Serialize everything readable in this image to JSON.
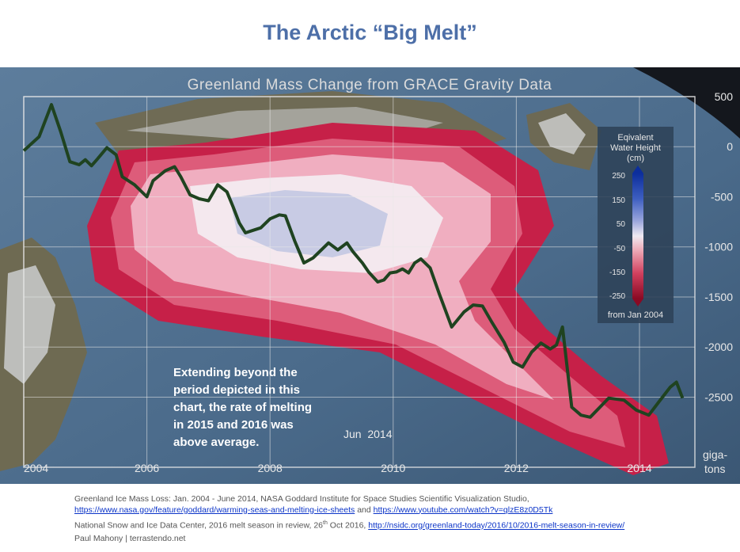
{
  "slide_title": "The Arctic “Big Melt”",
  "colors": {
    "title": "#4d6fa8",
    "sea": "#4a6a8a",
    "ice_loss": "#c62048",
    "ice_gain": "#c8cbe4",
    "line": "#1f4320",
    "link": "#0b34c8"
  },
  "chart_data": {
    "type": "line",
    "title": "Greenland Mass Change from GRACE Gravity Data",
    "xlabel": "",
    "ylabel": "giga-tons",
    "y_unit_lines": [
      "giga-",
      "tons"
    ],
    "xlim": [
      2004,
      2014.9
    ],
    "ylim": [
      -3200,
      500
    ],
    "x_ticks": [
      2004,
      2006,
      2008,
      2010,
      2012,
      2014
    ],
    "y_ticks": [
      500,
      0,
      -500,
      -1000,
      -1500,
      -2000,
      -2500
    ],
    "grid": true,
    "series": [
      {
        "name": "",
        "x": [
          2004.0,
          2004.25,
          2004.45,
          2004.6,
          2004.75,
          2004.9,
          2005.0,
          2005.1,
          2005.2,
          2005.35,
          2005.5,
          2005.6,
          2005.8,
          2006.0,
          2006.1,
          2006.3,
          2006.45,
          2006.55,
          2006.7,
          2006.85,
          2007.0,
          2007.15,
          2007.3,
          2007.4,
          2007.5,
          2007.6,
          2007.75,
          2007.85,
          2008.0,
          2008.15,
          2008.25,
          2008.4,
          2008.55,
          2008.7,
          2008.85,
          2008.95,
          2009.1,
          2009.25,
          2009.35,
          2009.5,
          2009.6,
          2009.75,
          2009.85,
          2009.95,
          2010.05,
          2010.15,
          2010.25,
          2010.35,
          2010.45,
          2010.6,
          2010.75,
          2010.95,
          2011.15,
          2011.3,
          2011.45,
          2011.6,
          2011.8,
          2011.95,
          2012.1,
          2012.25,
          2012.4,
          2012.55,
          2012.65,
          2012.75,
          2012.9,
          2013.05,
          2013.2,
          2013.5,
          2013.75,
          2013.95,
          2014.15,
          2014.3,
          2014.4,
          2014.5,
          2014.6,
          2014.7
        ],
        "values": [
          -40,
          100,
          420,
          150,
          -150,
          -180,
          -130,
          -190,
          -120,
          -10,
          -80,
          -300,
          -380,
          -500,
          -340,
          -240,
          -200,
          -300,
          -480,
          -520,
          -540,
          -380,
          -450,
          -600,
          -760,
          -860,
          -830,
          -810,
          -720,
          -680,
          -690,
          -940,
          -1160,
          -1110,
          -1020,
          -960,
          -1030,
          -960,
          -1050,
          -1160,
          -1250,
          -1350,
          -1330,
          -1260,
          -1250,
          -1220,
          -1260,
          -1160,
          -1120,
          -1210,
          -1470,
          -1800,
          -1650,
          -1580,
          -1590,
          -1750,
          -1950,
          -2150,
          -2200,
          -2050,
          -1960,
          -2020,
          -1980,
          -1800,
          -2600,
          -2680,
          -2700,
          -2510,
          -2530,
          -2630,
          -2680,
          -2560,
          -2480,
          -2400,
          -2350,
          -2510
        ]
      }
    ],
    "map_annotations": {
      "date_label": "Jun  2014",
      "callout": [
        "Extending beyond the",
        "period depicted in this",
        "chart, the rate of melting",
        "in 2015 and 2016 was",
        "above average."
      ]
    },
    "legend": {
      "title": [
        "Eqivalent",
        "Water Height",
        "(cm)"
      ],
      "ticks": [
        "250",
        "150",
        "50",
        "-50",
        "-150",
        "-250"
      ],
      "footer": "from Jan 2004",
      "placement": "right"
    }
  },
  "sources": {
    "line1_text": "Greenland Ice Mass Loss: Jan. 2004 - June 2014, NASA Goddard Institute for Space Studies Scientific Visualization Studio,",
    "link1": "https://www.nasa.gov/feature/goddard/warming-seas-and-melting-ice-sheets",
    "and_text": "and",
    "link2": "https://www.youtube.com/watch?v=qlzE8z0D5Tk",
    "line3_text": "National Snow and Ice Data Center, 2016 melt season in review, 26",
    "line3_sup": "th",
    "line3_after": "Oct 2016,",
    "link3": "http://nsidc.org/greenland-today/2016/10/2016-melt-season-in-review/",
    "line4_text": "Paul Mahony | terrastendo.net"
  }
}
